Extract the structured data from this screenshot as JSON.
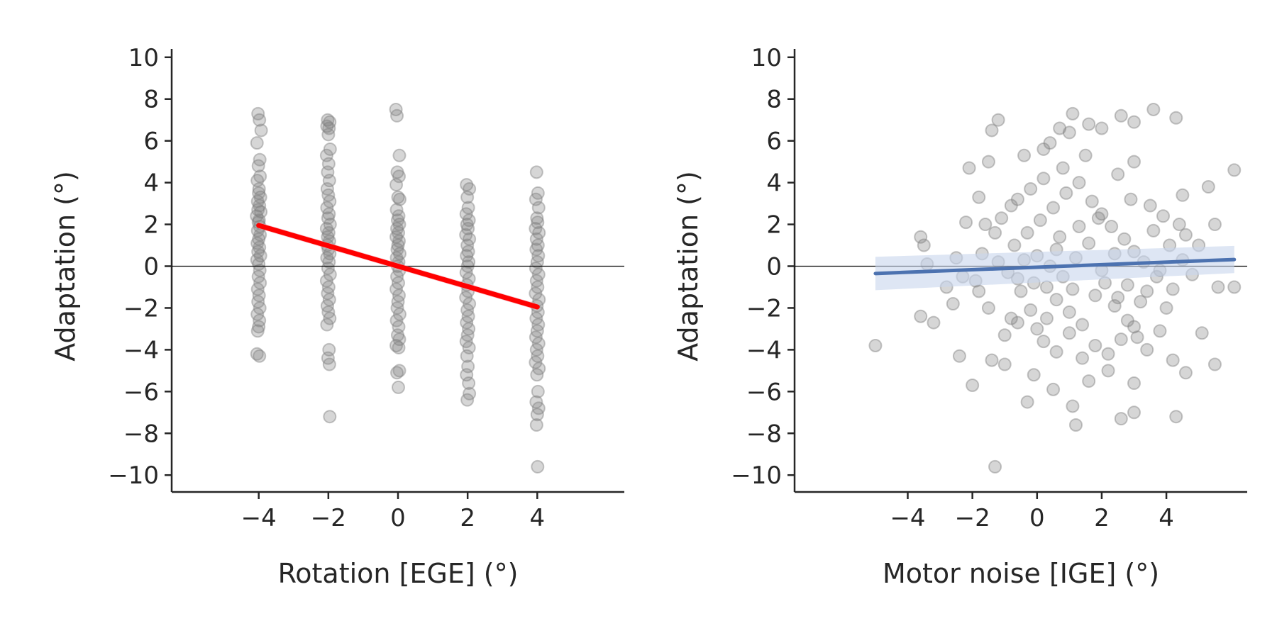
{
  "colors": {
    "points_fill": "#808080",
    "points_stroke": "#808080",
    "left_fit": "#ff0000",
    "left_band": "#f4a6b4",
    "right_fit": "#4c72b0",
    "right_band": "#c8d6ec",
    "axes": "#262626"
  },
  "chart_data": [
    {
      "type": "scatter",
      "title": "",
      "xlabel": "Rotation [EGE] (°)",
      "ylabel": "Adaptation (°)",
      "xlim": [
        -6.5,
        6.5
      ],
      "ylim": [
        -10.4,
        10.4
      ],
      "xticks": [
        -4,
        -2,
        0,
        2,
        4
      ],
      "xtick_labels": [
        "−4",
        "−2",
        "0",
        "2",
        "4"
      ],
      "yticks": [
        -10,
        -8,
        -6,
        -4,
        -2,
        0,
        2,
        4,
        6,
        8,
        10
      ],
      "ytick_labels": [
        "−10",
        "−8",
        "−6",
        "−4",
        "−2",
        "0",
        "2",
        "4",
        "6",
        "8",
        "10"
      ],
      "grid": false,
      "zero_line": 0,
      "fit": {
        "x": [
          -4,
          4
        ],
        "y": [
          1.95,
          -1.95
        ],
        "band_halfwidth": [
          0.15,
          0.15
        ]
      },
      "points": [
        [
          -4.02,
          7.3
        ],
        [
          -3.98,
          7.0
        ],
        [
          -3.93,
          6.5
        ],
        [
          -4.05,
          5.9
        ],
        [
          -3.97,
          5.1
        ],
        [
          -4.01,
          4.8
        ],
        [
          -3.96,
          4.3
        ],
        [
          -4.04,
          4.1
        ],
        [
          -3.99,
          3.7
        ],
        [
          -4.0,
          3.5
        ],
        [
          -3.95,
          3.3
        ],
        [
          -4.03,
          3.1
        ],
        [
          -3.98,
          2.9
        ],
        [
          -4.02,
          2.7
        ],
        [
          -3.94,
          2.6
        ],
        [
          -4.06,
          2.4
        ],
        [
          -3.99,
          2.2
        ],
        [
          -4.01,
          2.1
        ],
        [
          -3.97,
          1.9
        ],
        [
          -4.03,
          1.7
        ],
        [
          -3.96,
          1.5
        ],
        [
          -4.0,
          1.3
        ],
        [
          -4.04,
          1.1
        ],
        [
          -3.98,
          0.9
        ],
        [
          -4.02,
          0.7
        ],
        [
          -3.95,
          0.5
        ],
        [
          -4.05,
          0.3
        ],
        [
          -4.0,
          0.1
        ],
        [
          -3.97,
          -0.2
        ],
        [
          -4.01,
          -0.5
        ],
        [
          -3.96,
          -0.8
        ],
        [
          -4.03,
          -1.1
        ],
        [
          -3.99,
          -1.4
        ],
        [
          -4.02,
          -1.7
        ],
        [
          -3.97,
          -2.0
        ],
        [
          -4.04,
          -2.3
        ],
        [
          -3.98,
          -2.6
        ],
        [
          -4.0,
          -2.9
        ],
        [
          -4.03,
          -3.1
        ],
        [
          -4.05,
          -4.2
        ],
        [
          -3.98,
          -4.3
        ],
        [
          -2.02,
          7.0
        ],
        [
          -1.96,
          6.9
        ],
        [
          -2.04,
          6.7
        ],
        [
          -1.98,
          6.6
        ],
        [
          -2.0,
          6.3
        ],
        [
          -1.95,
          5.6
        ],
        [
          -2.05,
          5.3
        ],
        [
          -1.99,
          4.9
        ],
        [
          -2.02,
          4.5
        ],
        [
          -1.97,
          4.1
        ],
        [
          -2.03,
          3.7
        ],
        [
          -2.0,
          3.4
        ],
        [
          -1.96,
          3.1
        ],
        [
          -2.04,
          2.8
        ],
        [
          -1.98,
          2.5
        ],
        [
          -2.01,
          2.3
        ],
        [
          -1.95,
          2.0
        ],
        [
          -2.05,
          1.8
        ],
        [
          -1.99,
          1.6
        ],
        [
          -2.02,
          1.4
        ],
        [
          -1.97,
          1.2
        ],
        [
          -2.03,
          1.0
        ],
        [
          -2.0,
          0.8
        ],
        [
          -1.96,
          0.6
        ],
        [
          -2.04,
          0.4
        ],
        [
          -1.98,
          0.2
        ],
        [
          -2.01,
          -0.1
        ],
        [
          -1.95,
          -0.4
        ],
        [
          -2.05,
          -0.7
        ],
        [
          -1.99,
          -1.0
        ],
        [
          -2.02,
          -1.3
        ],
        [
          -1.97,
          -1.6
        ],
        [
          -2.03,
          -1.9
        ],
        [
          -2.0,
          -2.2
        ],
        [
          -1.96,
          -2.5
        ],
        [
          -2.04,
          -2.8
        ],
        [
          -1.98,
          -4.0
        ],
        [
          -2.01,
          -4.4
        ],
        [
          -1.97,
          -4.7
        ],
        [
          -1.96,
          -7.2
        ],
        [
          -0.06,
          7.5
        ],
        [
          -0.03,
          7.2
        ],
        [
          0.04,
          5.3
        ],
        [
          -0.02,
          4.5
        ],
        [
          0.03,
          4.3
        ],
        [
          -0.05,
          3.9
        ],
        [
          0.0,
          3.3
        ],
        [
          0.05,
          3.2
        ],
        [
          -0.04,
          2.7
        ],
        [
          0.02,
          2.4
        ],
        [
          -0.01,
          2.2
        ],
        [
          0.04,
          2.0
        ],
        [
          -0.03,
          1.8
        ],
        [
          0.01,
          1.6
        ],
        [
          -0.05,
          1.4
        ],
        [
          0.03,
          1.2
        ],
        [
          0.0,
          1.0
        ],
        [
          -0.02,
          0.8
        ],
        [
          0.05,
          0.6
        ],
        [
          -0.04,
          0.4
        ],
        [
          0.02,
          0.2
        ],
        [
          -0.01,
          0.0
        ],
        [
          0.04,
          -0.2
        ],
        [
          -0.03,
          -0.5
        ],
        [
          0.01,
          -0.8
        ],
        [
          -0.05,
          -1.1
        ],
        [
          0.03,
          -1.4
        ],
        [
          0.0,
          -1.7
        ],
        [
          -0.02,
          -2.0
        ],
        [
          0.05,
          -2.3
        ],
        [
          -0.04,
          -2.6
        ],
        [
          0.02,
          -2.9
        ],
        [
          -0.01,
          -3.3
        ],
        [
          0.04,
          -3.5
        ],
        [
          -0.05,
          -3.8
        ],
        [
          0.02,
          -3.9
        ],
        [
          -0.03,
          -5.1
        ],
        [
          0.04,
          -5.0
        ],
        [
          0.01,
          -5.8
        ],
        [
          1.97,
          3.9
        ],
        [
          2.05,
          3.7
        ],
        [
          1.99,
          3.3
        ],
        [
          2.02,
          2.8
        ],
        [
          1.96,
          2.5
        ],
        [
          2.04,
          2.2
        ],
        [
          1.98,
          2.0
        ],
        [
          2.01,
          1.8
        ],
        [
          1.95,
          1.5
        ],
        [
          2.05,
          1.3
        ],
        [
          1.99,
          1.0
        ],
        [
          2.02,
          0.7
        ],
        [
          1.97,
          0.5
        ],
        [
          2.03,
          0.2
        ],
        [
          2.0,
          0.0
        ],
        [
          1.96,
          -0.3
        ],
        [
          2.04,
          -0.6
        ],
        [
          1.98,
          -0.9
        ],
        [
          2.01,
          -1.2
        ],
        [
          1.95,
          -1.5
        ],
        [
          2.05,
          -1.8
        ],
        [
          1.99,
          -2.1
        ],
        [
          2.02,
          -2.4
        ],
        [
          1.97,
          -2.7
        ],
        [
          2.03,
          -3.0
        ],
        [
          2.0,
          -3.3
        ],
        [
          1.96,
          -3.6
        ],
        [
          2.04,
          -3.9
        ],
        [
          1.98,
          -4.3
        ],
        [
          2.01,
          -4.8
        ],
        [
          1.97,
          -5.2
        ],
        [
          2.03,
          -5.6
        ],
        [
          2.05,
          -6.1
        ],
        [
          1.99,
          -6.4
        ],
        [
          3.98,
          4.5
        ],
        [
          4.02,
          3.5
        ],
        [
          3.96,
          3.2
        ],
        [
          4.04,
          2.8
        ],
        [
          3.99,
          2.3
        ],
        [
          4.01,
          2.1
        ],
        [
          3.95,
          1.8
        ],
        [
          4.05,
          1.6
        ],
        [
          3.98,
          1.3
        ],
        [
          4.02,
          1.0
        ],
        [
          3.97,
          0.8
        ],
        [
          4.03,
          0.5
        ],
        [
          4.0,
          0.2
        ],
        [
          3.96,
          -0.1
        ],
        [
          4.04,
          -0.4
        ],
        [
          3.98,
          -0.7
        ],
        [
          4.01,
          -1.0
        ],
        [
          3.95,
          -1.3
        ],
        [
          4.05,
          -1.6
        ],
        [
          3.99,
          -1.9
        ],
        [
          4.02,
          -2.2
        ],
        [
          3.97,
          -2.5
        ],
        [
          4.03,
          -2.8
        ],
        [
          4.0,
          -3.1
        ],
        [
          3.96,
          -3.4
        ],
        [
          4.04,
          -3.7
        ],
        [
          3.98,
          -4.0
        ],
        [
          4.01,
          -4.3
        ],
        [
          3.95,
          -4.6
        ],
        [
          4.05,
          -4.9
        ],
        [
          3.99,
          -5.2
        ],
        [
          4.02,
          -6.0
        ],
        [
          3.97,
          -6.5
        ],
        [
          4.04,
          -6.8
        ],
        [
          4.0,
          -7.1
        ],
        [
          3.98,
          -7.6
        ],
        [
          4.01,
          -9.6
        ]
      ]
    },
    {
      "type": "scatter",
      "title": "",
      "xlabel": "Motor noise [IGE] (°)",
      "ylabel": "Adaptation (°)",
      "xlim": [
        -7.5,
        6.5
      ],
      "ylim": [
        -10.4,
        10.4
      ],
      "xticks": [
        -4,
        -2,
        0,
        2,
        4
      ],
      "xtick_labels": [
        "−4",
        "−2",
        "0",
        "2",
        "4"
      ],
      "yticks": [
        -10,
        -8,
        -6,
        -4,
        -2,
        0,
        2,
        4,
        6,
        8,
        10
      ],
      "ytick_labels": [
        "−10",
        "−8",
        "−6",
        "−4",
        "−2",
        "0",
        "2",
        "4",
        "6",
        "8",
        "10"
      ],
      "grid": false,
      "zero_line": 0,
      "fit": {
        "x": [
          -5.0,
          6.1
        ],
        "y": [
          -0.35,
          0.32
        ],
        "band_halfwidth": [
          0.8,
          0.65
        ]
      },
      "points": [
        [
          -5.0,
          -3.8
        ],
        [
          -3.6,
          1.4
        ],
        [
          -3.5,
          1.0
        ],
        [
          -3.4,
          0.1
        ],
        [
          -3.6,
          -2.4
        ],
        [
          -3.2,
          -2.7
        ],
        [
          -2.6,
          -1.8
        ],
        [
          -2.4,
          -4.3
        ],
        [
          -2.0,
          -5.7
        ],
        [
          -2.1,
          4.7
        ],
        [
          -2.2,
          2.1
        ],
        [
          -1.8,
          3.3
        ],
        [
          -1.4,
          6.5
        ],
        [
          -1.2,
          7.0
        ],
        [
          -1.5,
          5.0
        ],
        [
          -1.6,
          2.0
        ],
        [
          -1.3,
          -9.6
        ],
        [
          -1.4,
          -4.5
        ],
        [
          -1.0,
          -4.7
        ],
        [
          -1.9,
          -0.7
        ],
        [
          -1.7,
          0.6
        ],
        [
          -1.1,
          2.3
        ],
        [
          -0.6,
          3.2
        ],
        [
          -0.4,
          5.3
        ],
        [
          0.2,
          5.6
        ],
        [
          0.4,
          5.9
        ],
        [
          0.7,
          6.6
        ],
        [
          1.0,
          6.4
        ],
        [
          1.1,
          7.3
        ],
        [
          1.6,
          6.8
        ],
        [
          2.0,
          6.6
        ],
        [
          2.6,
          7.2
        ],
        [
          3.0,
          6.9
        ],
        [
          3.6,
          7.5
        ],
        [
          4.3,
          7.1
        ],
        [
          2.5,
          4.4
        ],
        [
          3.0,
          5.0
        ],
        [
          4.5,
          3.4
        ],
        [
          5.3,
          3.8
        ],
        [
          6.1,
          4.6
        ],
        [
          5.5,
          2.0
        ],
        [
          5.0,
          1.0
        ],
        [
          5.6,
          -1.0
        ],
        [
          6.1,
          -1.0
        ],
        [
          5.5,
          -4.7
        ],
        [
          5.1,
          -3.2
        ],
        [
          4.6,
          -5.1
        ],
        [
          4.3,
          -7.2
        ],
        [
          3.0,
          -7.0
        ],
        [
          2.6,
          -7.3
        ],
        [
          1.2,
          -7.6
        ],
        [
          1.1,
          -6.7
        ],
        [
          0.5,
          -5.9
        ],
        [
          -0.1,
          -5.2
        ],
        [
          -0.3,
          -6.5
        ],
        [
          2.2,
          -5.0
        ],
        [
          1.6,
          -5.5
        ],
        [
          3.0,
          -5.6
        ],
        [
          -0.8,
          -2.5
        ],
        [
          0.0,
          -3.0
        ],
        [
          0.3,
          -1.0
        ],
        [
          0.6,
          -1.6
        ],
        [
          1.0,
          -2.2
        ],
        [
          1.4,
          -2.8
        ],
        [
          1.8,
          -1.4
        ],
        [
          2.1,
          -0.8
        ],
        [
          2.4,
          -1.9
        ],
        [
          2.8,
          -2.6
        ],
        [
          3.1,
          -3.4
        ],
        [
          3.4,
          -1.2
        ],
        [
          3.7,
          -0.5
        ],
        [
          4.0,
          -2.0
        ],
        [
          4.2,
          -1.1
        ],
        [
          4.5,
          0.3
        ],
        [
          4.8,
          -0.4
        ],
        [
          -0.5,
          -1.2
        ],
        [
          -0.9,
          -0.3
        ],
        [
          -1.2,
          0.2
        ],
        [
          -0.7,
          1.0
        ],
        [
          -0.3,
          1.6
        ],
        [
          0.1,
          2.2
        ],
        [
          0.5,
          2.8
        ],
        [
          0.9,
          3.5
        ],
        [
          1.3,
          4.0
        ],
        [
          1.7,
          3.1
        ],
        [
          2.0,
          2.5
        ],
        [
          2.3,
          1.9
        ],
        [
          2.7,
          1.3
        ],
        [
          3.0,
          0.7
        ],
        [
          3.3,
          0.2
        ],
        [
          3.6,
          1.7
        ],
        [
          3.9,
          2.4
        ],
        [
          4.1,
          1.0
        ],
        [
          4.4,
          2.0
        ],
        [
          0.0,
          0.5
        ],
        [
          0.4,
          0.0
        ],
        [
          0.8,
          -0.5
        ],
        [
          1.2,
          0.4
        ],
        [
          1.6,
          1.1
        ],
        [
          2.0,
          -0.2
        ],
        [
          2.4,
          0.6
        ],
        [
          2.8,
          -0.9
        ],
        [
          3.2,
          -1.7
        ],
        [
          -0.2,
          -2.1
        ],
        [
          -0.6,
          -2.7
        ],
        [
          -1.0,
          -3.3
        ],
        [
          0.2,
          -3.6
        ],
        [
          0.6,
          -4.1
        ],
        [
          1.0,
          -3.2
        ],
        [
          1.4,
          -4.4
        ],
        [
          1.8,
          -3.8
        ],
        [
          2.2,
          -4.2
        ],
        [
          2.6,
          -3.5
        ],
        [
          3.0,
          -2.9
        ],
        [
          3.4,
          -4.0
        ],
        [
          3.8,
          -3.1
        ],
        [
          4.2,
          -4.5
        ],
        [
          -1.5,
          -2.0
        ],
        [
          -1.8,
          -1.2
        ],
        [
          -2.3,
          -0.5
        ],
        [
          -2.5,
          0.4
        ],
        [
          -2.8,
          -1.0
        ],
        [
          1.5,
          5.3
        ],
        [
          0.8,
          4.7
        ],
        [
          0.2,
          4.2
        ],
        [
          -0.2,
          3.7
        ],
        [
          -0.8,
          2.9
        ],
        [
          -1.3,
          1.6
        ],
        [
          -0.4,
          0.3
        ],
        [
          0.7,
          1.4
        ],
        [
          1.9,
          2.3
        ],
        [
          2.9,
          3.2
        ],
        [
          3.5,
          2.9
        ],
        [
          1.1,
          -1.1
        ],
        [
          0.3,
          -2.5
        ],
        [
          -0.1,
          -0.8
        ],
        [
          2.5,
          -1.5
        ],
        [
          1.3,
          1.9
        ],
        [
          0.6,
          0.8
        ],
        [
          -0.6,
          -0.6
        ],
        [
          3.8,
          -0.2
        ],
        [
          4.6,
          1.5
        ]
      ]
    }
  ]
}
